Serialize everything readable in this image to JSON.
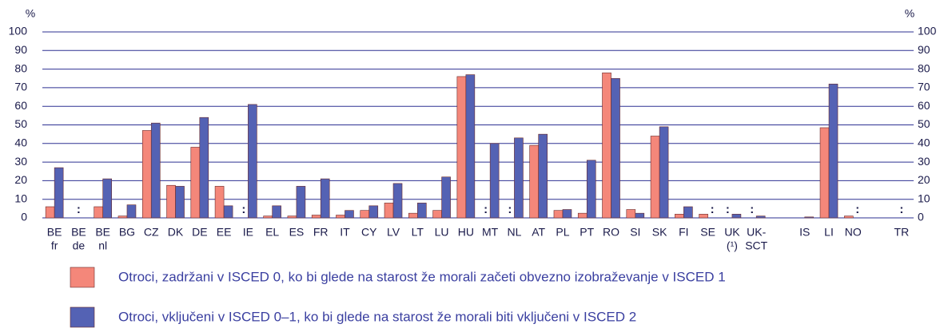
{
  "chart_data": {
    "type": "bar",
    "y_unit": "%",
    "y2_unit": "%",
    "missing_label": ":",
    "categories": [
      [
        "BE",
        "fr"
      ],
      [
        "BE",
        "de"
      ],
      [
        "BE",
        "nl"
      ],
      [
        "BG"
      ],
      [
        "CZ"
      ],
      [
        "DK"
      ],
      [
        "DE"
      ],
      [
        "EE"
      ],
      [
        "IE"
      ],
      [
        "EL"
      ],
      [
        "ES"
      ],
      [
        "FR"
      ],
      [
        "IT"
      ],
      [
        "CY"
      ],
      [
        "LV"
      ],
      [
        "LT"
      ],
      [
        "LU"
      ],
      [
        "HU"
      ],
      [
        "MT"
      ],
      [
        "NL"
      ],
      [
        "AT"
      ],
      [
        "PL"
      ],
      [
        "PT"
      ],
      [
        "RO"
      ],
      [
        "SI"
      ],
      [
        "SK"
      ],
      [
        "FI"
      ],
      [
        "SE"
      ],
      [
        "UK",
        "(¹)"
      ],
      [
        "UK-",
        "SCT"
      ],
      null,
      [
        "IS"
      ],
      [
        "LI"
      ],
      [
        "NO"
      ],
      null,
      [
        "TR"
      ]
    ],
    "series": [
      {
        "name": "Otroci, zadržani v ISCED 0, ko bi glede na starost že morali začeti obvezno izobraževanje v ISCED 1",
        "color": "#f4877a",
        "values": [
          6,
          null,
          6,
          1,
          47,
          17.5,
          38,
          17,
          null,
          1,
          1,
          1.5,
          1.5,
          4,
          8,
          2.5,
          4,
          76,
          null,
          null,
          39,
          4,
          2.5,
          78,
          4.5,
          44,
          2,
          2,
          null,
          null,
          null,
          0,
          48.5,
          1,
          null,
          null
        ]
      },
      {
        "name": "Otroci, vključeni v ISCED 0–1, ko bi glede na starost že morali biti vključeni v ISCED 2",
        "color": "#5462b4",
        "values": [
          27,
          null,
          21,
          7,
          51,
          17,
          54,
          6.5,
          61,
          6.5,
          17,
          21,
          4,
          6.5,
          18.5,
          8,
          22,
          77,
          40,
          43,
          45,
          4.5,
          31,
          75,
          2.5,
          49,
          6,
          null,
          2,
          1,
          null,
          0.5,
          72,
          null,
          null,
          null
        ]
      }
    ],
    "ylim": [
      0,
      100
    ],
    "yticks": [
      0,
      10,
      20,
      30,
      40,
      50,
      60,
      70,
      80,
      90,
      100
    ],
    "y2lim": [
      0,
      100
    ],
    "y2ticks": [
      0,
      10,
      20,
      30,
      40,
      50,
      60,
      70,
      80,
      90,
      100
    ],
    "grid": true
  }
}
